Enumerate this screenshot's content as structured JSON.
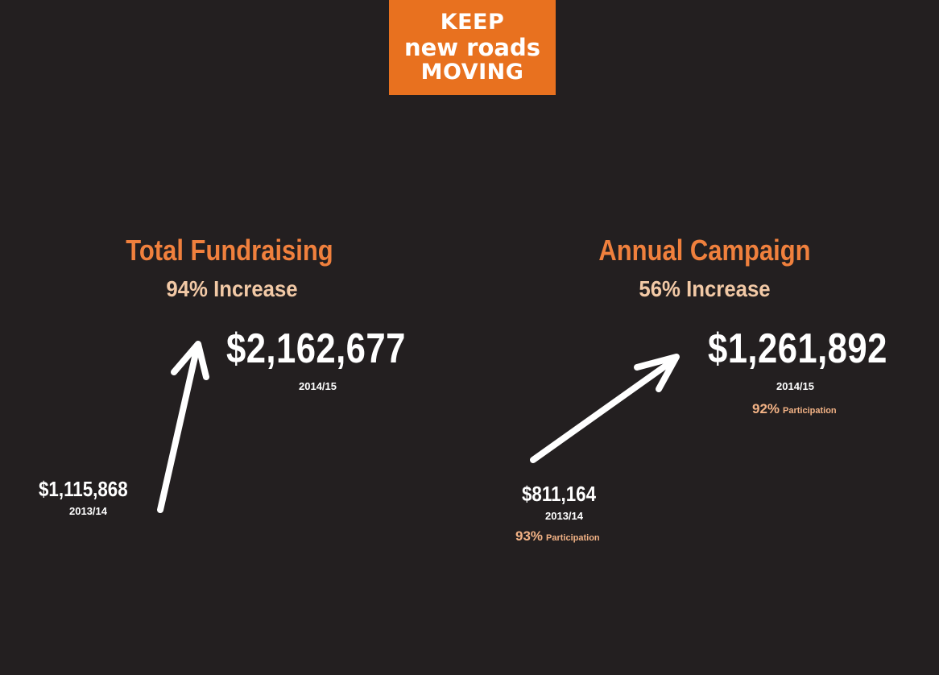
{
  "logo": {
    "line1": "KEEP",
    "line2": "new roads",
    "line3": "MOVING"
  },
  "colors": {
    "background": "#231f20",
    "brand_orange": "#e8711f",
    "title_orange": "#f0803d",
    "subtitle_peach": "#f2c9a6",
    "participation_peach": "#f2b285",
    "text_white": "#ffffff"
  },
  "total_fundraising": {
    "title": "Total Fundraising",
    "increase": "94% Increase",
    "current_value": "$2,162,677",
    "current_year": "2014/15",
    "previous_value": "$1,115,868",
    "previous_year": "2013/14"
  },
  "annual_campaign": {
    "title": "Annual Campaign",
    "increase": "56% Increase",
    "current_value": "$1,261,892",
    "current_year": "2014/15",
    "current_participation_pct": "92%",
    "current_participation_label": "Participation",
    "previous_value": "$811,164",
    "previous_year": "2013/14",
    "previous_participation_pct": "93%",
    "previous_participation_label": "Participation"
  }
}
